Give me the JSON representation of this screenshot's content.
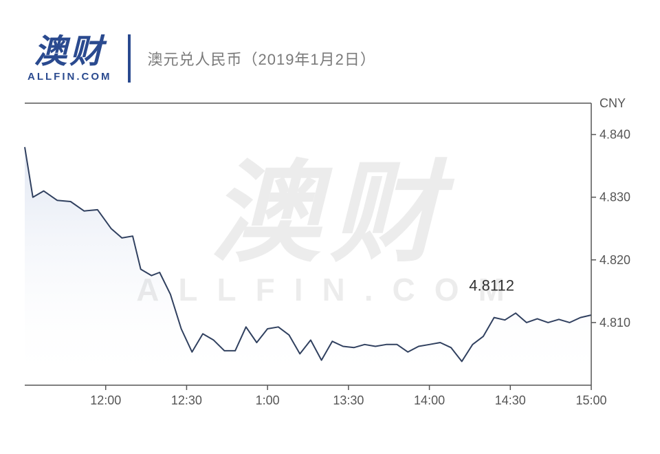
{
  "logo": {
    "cn": "澳财",
    "en": "ALLFIN.COM",
    "color": "#2a4a8f"
  },
  "title": "澳元兑人民币（2019年1月2日）",
  "watermark": {
    "cn": "澳财",
    "en": "ALLFIN.COM"
  },
  "chart": {
    "type": "area",
    "y_unit": "CNY",
    "ylim": [
      4.8,
      4.845
    ],
    "yticks": [
      4.81,
      4.82,
      4.83,
      4.84
    ],
    "ytick_labels": [
      "4.810",
      "4.820",
      "4.830",
      "4.840"
    ],
    "xlim_minutes": [
      690,
      900
    ],
    "xticks_minutes": [
      720,
      750,
      780,
      810,
      840,
      870,
      900
    ],
    "xtick_labels": [
      "12:00",
      "12:30",
      "1:00",
      "13:30",
      "14:00",
      "14:30",
      "15:00"
    ],
    "line_color": "#30405f",
    "line_width": 2,
    "area_fill_top": "#c8d3e8",
    "area_fill_bottom": "#ffffff",
    "area_opacity": 0.55,
    "axis_color": "#555555",
    "background_color": "#ffffff",
    "label_fontsize": 18,
    "annotation": {
      "text": "4.8112",
      "x_minutes": 870,
      "y": 4.8138,
      "fontsize": 22
    },
    "data": [
      [
        690,
        4.838
      ],
      [
        693,
        4.83
      ],
      [
        697,
        4.831
      ],
      [
        702,
        4.8295
      ],
      [
        707,
        4.8293
      ],
      [
        712,
        4.8278
      ],
      [
        717,
        4.828
      ],
      [
        722,
        4.825
      ],
      [
        726,
        4.8235
      ],
      [
        730,
        4.8238
      ],
      [
        733,
        4.8185
      ],
      [
        737,
        4.8175
      ],
      [
        740,
        4.818
      ],
      [
        744,
        4.8145
      ],
      [
        748,
        4.809
      ],
      [
        752,
        4.8053
      ],
      [
        756,
        4.8082
      ],
      [
        760,
        4.8072
      ],
      [
        764,
        4.8055
      ],
      [
        768,
        4.8055
      ],
      [
        772,
        4.8093
      ],
      [
        776,
        4.8068
      ],
      [
        780,
        4.809
      ],
      [
        784,
        4.8093
      ],
      [
        788,
        4.808
      ],
      [
        792,
        4.805
      ],
      [
        796,
        4.8072
      ],
      [
        800,
        4.804
      ],
      [
        804,
        4.807
      ],
      [
        808,
        4.8062
      ],
      [
        812,
        4.806
      ],
      [
        816,
        4.8065
      ],
      [
        820,
        4.8062
      ],
      [
        824,
        4.8065
      ],
      [
        828,
        4.8065
      ],
      [
        832,
        4.8053
      ],
      [
        836,
        4.8062
      ],
      [
        840,
        4.8065
      ],
      [
        844,
        4.8068
      ],
      [
        848,
        4.806
      ],
      [
        852,
        4.8038
      ],
      [
        856,
        4.8065
      ],
      [
        860,
        4.8078
      ],
      [
        864,
        4.8108
      ],
      [
        868,
        4.8104
      ],
      [
        872,
        4.8115
      ],
      [
        876,
        4.81
      ],
      [
        880,
        4.8106
      ],
      [
        884,
        4.81
      ],
      [
        888,
        4.8105
      ],
      [
        892,
        4.81
      ],
      [
        896,
        4.8108
      ],
      [
        900,
        4.8112
      ]
    ]
  }
}
